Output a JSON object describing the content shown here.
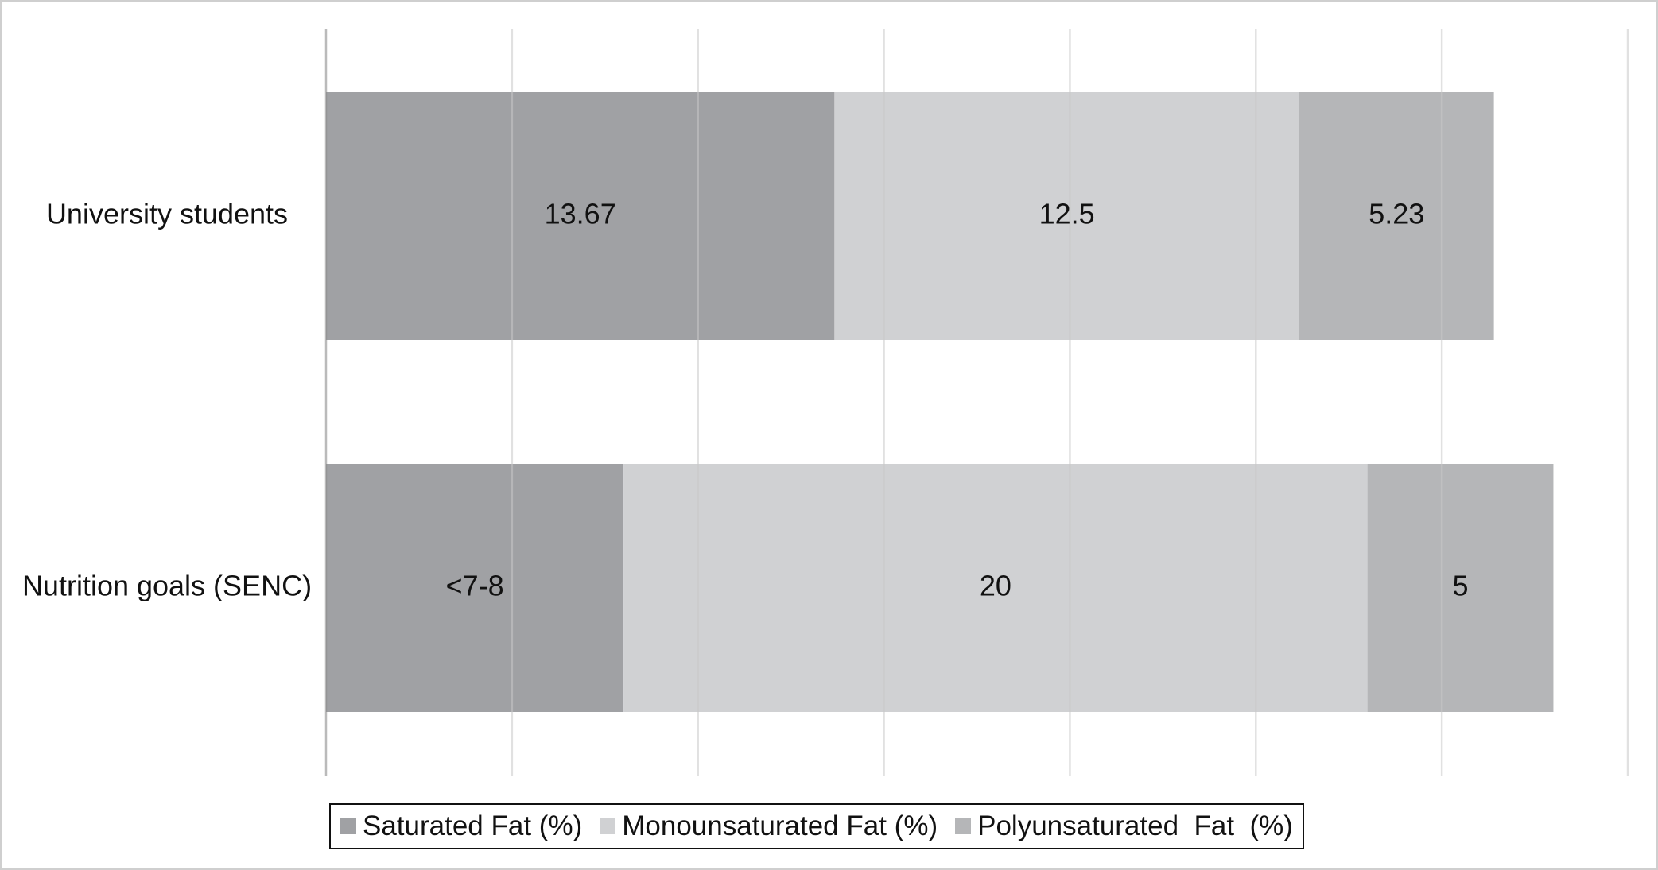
{
  "chart_data": {
    "type": "stacked_barh",
    "categories": [
      "University students",
      "Nutrition goals (SENC)"
    ],
    "series": [
      {
        "name": "Saturated Fat (%)",
        "color": "#a0a1a4",
        "values": [
          13.67,
          8
        ],
        "value_labels": [
          "13.67",
          "<7-8"
        ]
      },
      {
        "name": "Monounsaturated Fat (%)",
        "color": "#d0d1d3",
        "values": [
          12.5,
          20
        ]
      },
      {
        "name": "Polyunsaturated  Fat  (%)",
        "color": "#b5b6b8",
        "values": [
          5.23,
          5
        ]
      }
    ],
    "xlim": [
      0,
      35
    ],
    "xticks": [
      0,
      5,
      10,
      15,
      20,
      25,
      30,
      35
    ],
    "grid": true,
    "legend": "bottom"
  }
}
